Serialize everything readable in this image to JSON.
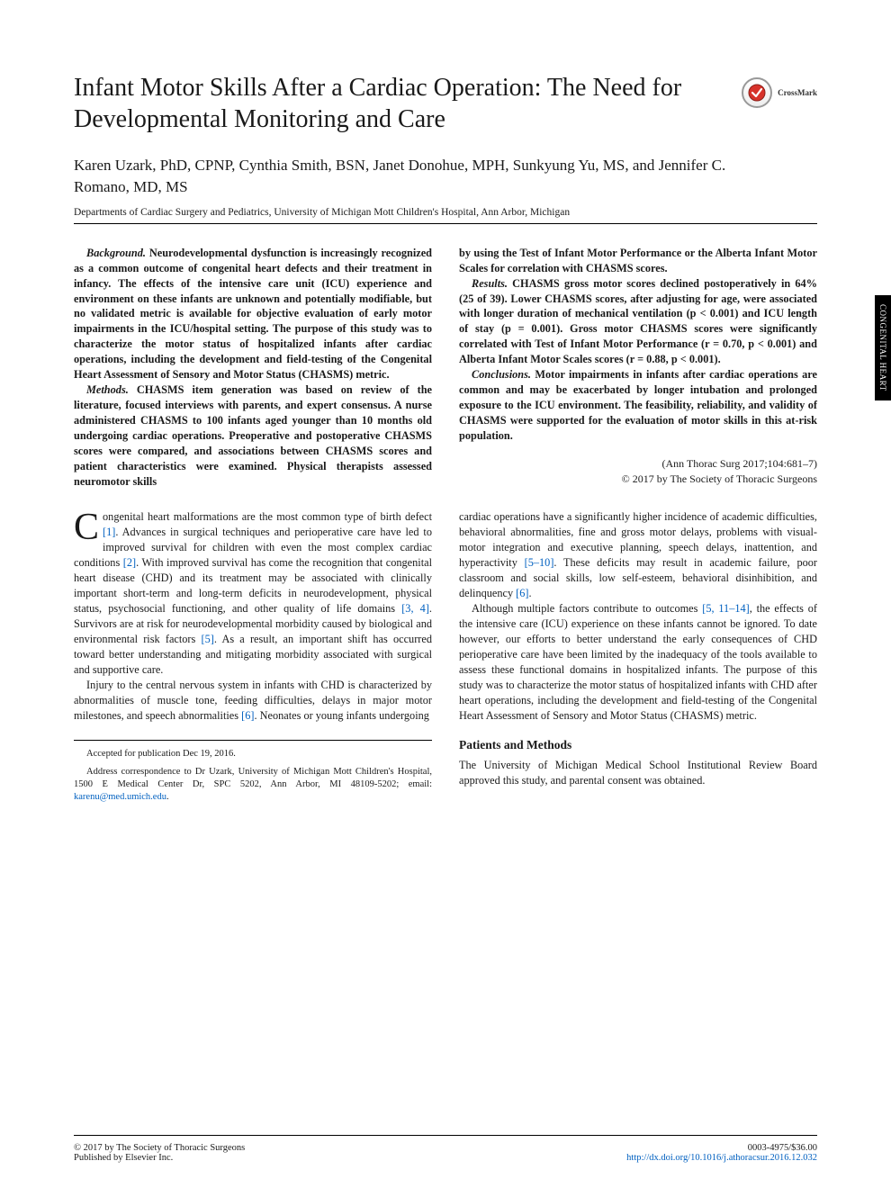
{
  "title": "Infant Motor Skills After a Cardiac Operation: The Need for Developmental Monitoring and Care",
  "crossmark_label": "CrossMark",
  "authors": "Karen Uzark, PhD, CPNP, Cynthia Smith, BSN, Janet Donohue, MPH, Sunkyung Yu, MS, and Jennifer C. Romano, MD, MS",
  "affiliation": "Departments of Cardiac Surgery and Pediatrics, University of Michigan Mott Children's Hospital, Ann Arbor, Michigan",
  "side_tab": "CONGENITAL HEART",
  "abstract": {
    "background_label": "Background.",
    "background": "Neurodevelopmental dysfunction is increasingly recognized as a common outcome of congenital heart defects and their treatment in infancy. The effects of the intensive care unit (ICU) experience and environment on these infants are unknown and potentially modifiable, but no validated metric is available for objective evaluation of early motor impairments in the ICU/hospital setting. The purpose of this study was to characterize the motor status of hospitalized infants after cardiac operations, including the development and field-testing of the Congenital Heart Assessment of Sensory and Motor Status (CHASMS) metric.",
    "methods_label": "Methods.",
    "methods": "CHASMS item generation was based on review of the literature, focused interviews with parents, and expert consensus. A nurse administered CHASMS to 100 infants aged younger than 10 months old undergoing cardiac operations. Preoperative and postoperative CHASMS scores were compared, and associations between CHASMS scores and patient characteristics were examined. Physical therapists assessed neuromotor skills",
    "methods_cont": "by using the Test of Infant Motor Performance or the Alberta Infant Motor Scales for correlation with CHASMS scores.",
    "results_label": "Results.",
    "results": "CHASMS gross motor scores declined postoperatively in 64% (25 of 39). Lower CHASMS scores, after adjusting for age, were associated with longer duration of mechanical ventilation (p < 0.001) and ICU length of stay (p = 0.001). Gross motor CHASMS scores were significantly correlated with Test of Infant Motor Performance (r = 0.70, p < 0.001) and Alberta Infant Motor Scales scores (r = 0.88, p < 0.001).",
    "conclusions_label": "Conclusions.",
    "conclusions": "Motor impairments in infants after cardiac operations are common and may be exacerbated by longer intubation and prolonged exposure to the ICU environment. The feasibility, reliability, and validity of CHASMS were supported for the evaluation of motor skills in this at-risk population."
  },
  "citation_line1": "(Ann Thorac Surg 2017;104:681–7)",
  "citation_line2": "© 2017 by The Society of Thoracic Surgeons",
  "body": {
    "p1_drop": "C",
    "p1": "ongenital heart malformations are the most common type of birth defect [1]. Advances in surgical techniques and perioperative care have led to improved survival for children with even the most complex cardiac conditions [2]. With improved survival has come the recognition that congenital heart disease (CHD) and its treatment may be associated with clinically important short-term and long-term deficits in neurodevelopment, physical status, psychosocial functioning, and other quality of life domains [3, 4]. Survivors are at risk for neurodevelopmental morbidity caused by biological and environmental risk factors [5]. As a result, an important shift has occurred toward better understanding and mitigating morbidity associated with surgical and supportive care.",
    "p2": "Injury to the central nervous system in infants with CHD is characterized by abnormalities of muscle tone, feeding difficulties, delays in major motor milestones, and speech abnormalities [6]. Neonates or young infants undergoing",
    "p3": "cardiac operations have a significantly higher incidence of academic difficulties, behavioral abnormalities, fine and gross motor delays, problems with visual-motor integration and executive planning, speech delays, inattention, and hyperactivity [5–10]. These deficits may result in academic failure, poor classroom and social skills, low self-esteem, behavioral disinhibition, and delinquency [6].",
    "p4": "Although multiple factors contribute to outcomes [5, 11–14], the effects of the intensive care (ICU) experience on these infants cannot be ignored. To date however, our efforts to better understand the early consequences of CHD perioperative care have been limited by the inadequacy of the tools available to assess these functional domains in hospitalized infants. The purpose of this study was to characterize the motor status of hospitalized infants with CHD after heart operations, including the development and field-testing of the Congenital Heart Assessment of Sensory and Motor Status (CHASMS) metric.",
    "heading": "Patients and Methods",
    "p5": "The University of Michigan Medical School Institutional Review Board approved this study, and parental consent was obtained."
  },
  "footnotes": {
    "accepted": "Accepted for publication Dec 19, 2016.",
    "correspondence": "Address correspondence to Dr Uzark, University of Michigan Mott Children's Hospital, 1500 E Medical Center Dr, SPC 5202, Ann Arbor, MI 48109-5202; email: ",
    "email": "karenu@med.umich.edu"
  },
  "footer": {
    "left1": "© 2017 by The Society of Thoracic Surgeons",
    "left2": "Published by Elsevier Inc.",
    "right1": "0003-4975/$36.00",
    "doi": "http://dx.doi.org/10.1016/j.athoracsur.2016.12.032"
  },
  "colors": {
    "text": "#1a1a1a",
    "link": "#0060c0",
    "bg": "#ffffff",
    "tab_bg": "#000000",
    "tab_fg": "#ffffff"
  },
  "fonts": {
    "title_pt": 28,
    "authors_pt": 17,
    "affiliation_pt": 11.5,
    "body_pt": 12.3,
    "footnote_pt": 10.5,
    "footer_pt": 10.5
  }
}
